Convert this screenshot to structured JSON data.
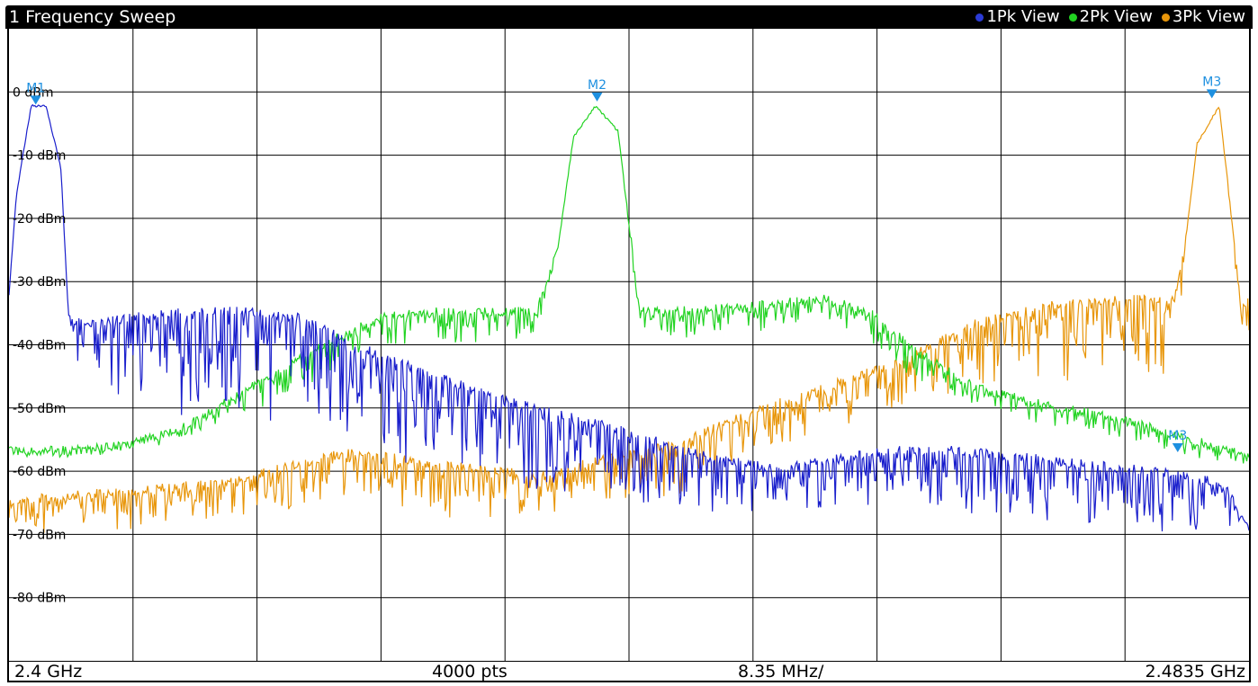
{
  "header": {
    "title": "1 Frequency Sweep",
    "legend": [
      {
        "label": "1Pk View",
        "color": "#2b3bd6"
      },
      {
        "label": "2Pk View",
        "color": "#22d322"
      },
      {
        "label": "3Pk View",
        "color": "#e8960a"
      }
    ]
  },
  "footer": {
    "start": "2.4 GHz",
    "points": "4000 pts",
    "span_per_div": "8.35 MHz/",
    "stop": "2.4835 GHz"
  },
  "chart_data": {
    "type": "line",
    "x_unit": "GHz",
    "xlim": [
      2.4,
      2.4835
    ],
    "ylim": [
      -90,
      10
    ],
    "y_ticks": [
      0,
      -10,
      -20,
      -30,
      -40,
      -50,
      -60,
      -70,
      -80
    ],
    "y_tick_labels": [
      "0 dBm",
      "-10 dBm",
      "-20 dBm",
      "-30 dBm",
      "-40 dBm",
      "-50 dBm",
      "-60 dBm",
      "-70 dBm",
      "-80 dBm"
    ],
    "grid": true,
    "legend_position": "top-right",
    "series": [
      {
        "name": "1Pk View",
        "color": "#1a1fcc",
        "x": [
          2.4,
          2.4005,
          2.4015,
          2.4025,
          2.4035,
          2.404,
          2.405,
          2.408,
          2.412,
          2.416,
          2.4195,
          2.425,
          2.432,
          2.44,
          2.447,
          2.452,
          2.456,
          2.46,
          2.464,
          2.468,
          2.472,
          2.476,
          2.48,
          2.482,
          2.4835
        ],
        "values": [
          -32,
          -16,
          -2,
          -2,
          -12,
          -35,
          -36,
          -35,
          -34,
          -34,
          -35,
          -41,
          -47,
          -52,
          -57,
          -59,
          -57,
          -56,
          -56,
          -57,
          -58,
          -59,
          -60,
          -62,
          -68
        ],
        "floor_values": [
          -32,
          -16,
          -2,
          -2,
          -12,
          -35,
          -48,
          -50,
          -52,
          -53,
          -55,
          -58,
          -63,
          -66,
          -68,
          -68,
          -67,
          -67,
          -67,
          -68,
          -69,
          -70,
          -70,
          -70,
          -70
        ]
      },
      {
        "name": "2Pk View",
        "color": "#22d322",
        "x": [
          2.4,
          2.404,
          2.408,
          2.412,
          2.4155,
          2.419,
          2.422,
          2.425,
          2.428,
          2.432,
          2.4355,
          2.437,
          2.438,
          2.4395,
          2.441,
          2.4425,
          2.445,
          2.45,
          2.455,
          2.458,
          2.461,
          2.465,
          2.47,
          2.475,
          2.4835
        ],
        "values": [
          -56,
          -56,
          -55,
          -52,
          -47,
          -42,
          -38,
          -35,
          -34,
          -34,
          -34,
          -24,
          -7,
          -2,
          -6,
          -34,
          -34,
          -33,
          -32,
          -34,
          -40,
          -46,
          -49,
          -51,
          -57
        ],
        "floor_values": [
          -58,
          -58,
          -57,
          -55,
          -52,
          -48,
          -44,
          -40,
          -40,
          -40,
          -40,
          -24,
          -7,
          -2,
          -6,
          -40,
          -40,
          -38,
          -37,
          -40,
          -46,
          -50,
          -53,
          -55,
          -60
        ]
      },
      {
        "name": "3Pk View",
        "color": "#e8960a",
        "x": [
          2.4,
          2.405,
          2.41,
          2.415,
          2.4195,
          2.423,
          2.428,
          2.432,
          2.436,
          2.4405,
          2.445,
          2.45,
          2.455,
          2.46,
          2.465,
          2.47,
          2.475,
          2.4785,
          2.4793,
          2.48,
          2.4815,
          2.483,
          2.4835
        ],
        "values": [
          -64,
          -63,
          -62,
          -61,
          -58,
          -56,
          -58,
          -59,
          -60,
          -57,
          -55,
          -50,
          -46,
          -42,
          -36,
          -33,
          -32,
          -32,
          -22,
          -8,
          -2,
          -34,
          -32
        ],
        "floor_values": [
          -70,
          -70,
          -70,
          -68,
          -66,
          -64,
          -67,
          -68,
          -68,
          -66,
          -64,
          -58,
          -54,
          -50,
          -47,
          -47,
          -46,
          -46,
          -22,
          -8,
          -2,
          -38,
          -40
        ]
      }
    ],
    "markers": [
      {
        "label": "M1",
        "x": 2.4018,
        "y": -2
      },
      {
        "label": "M2",
        "x": 2.4396,
        "y": -1.5
      },
      {
        "label": "M3",
        "x": 2.481,
        "y": -1
      },
      {
        "label": "M3",
        "x": 2.4787,
        "y": -57
      }
    ]
  }
}
